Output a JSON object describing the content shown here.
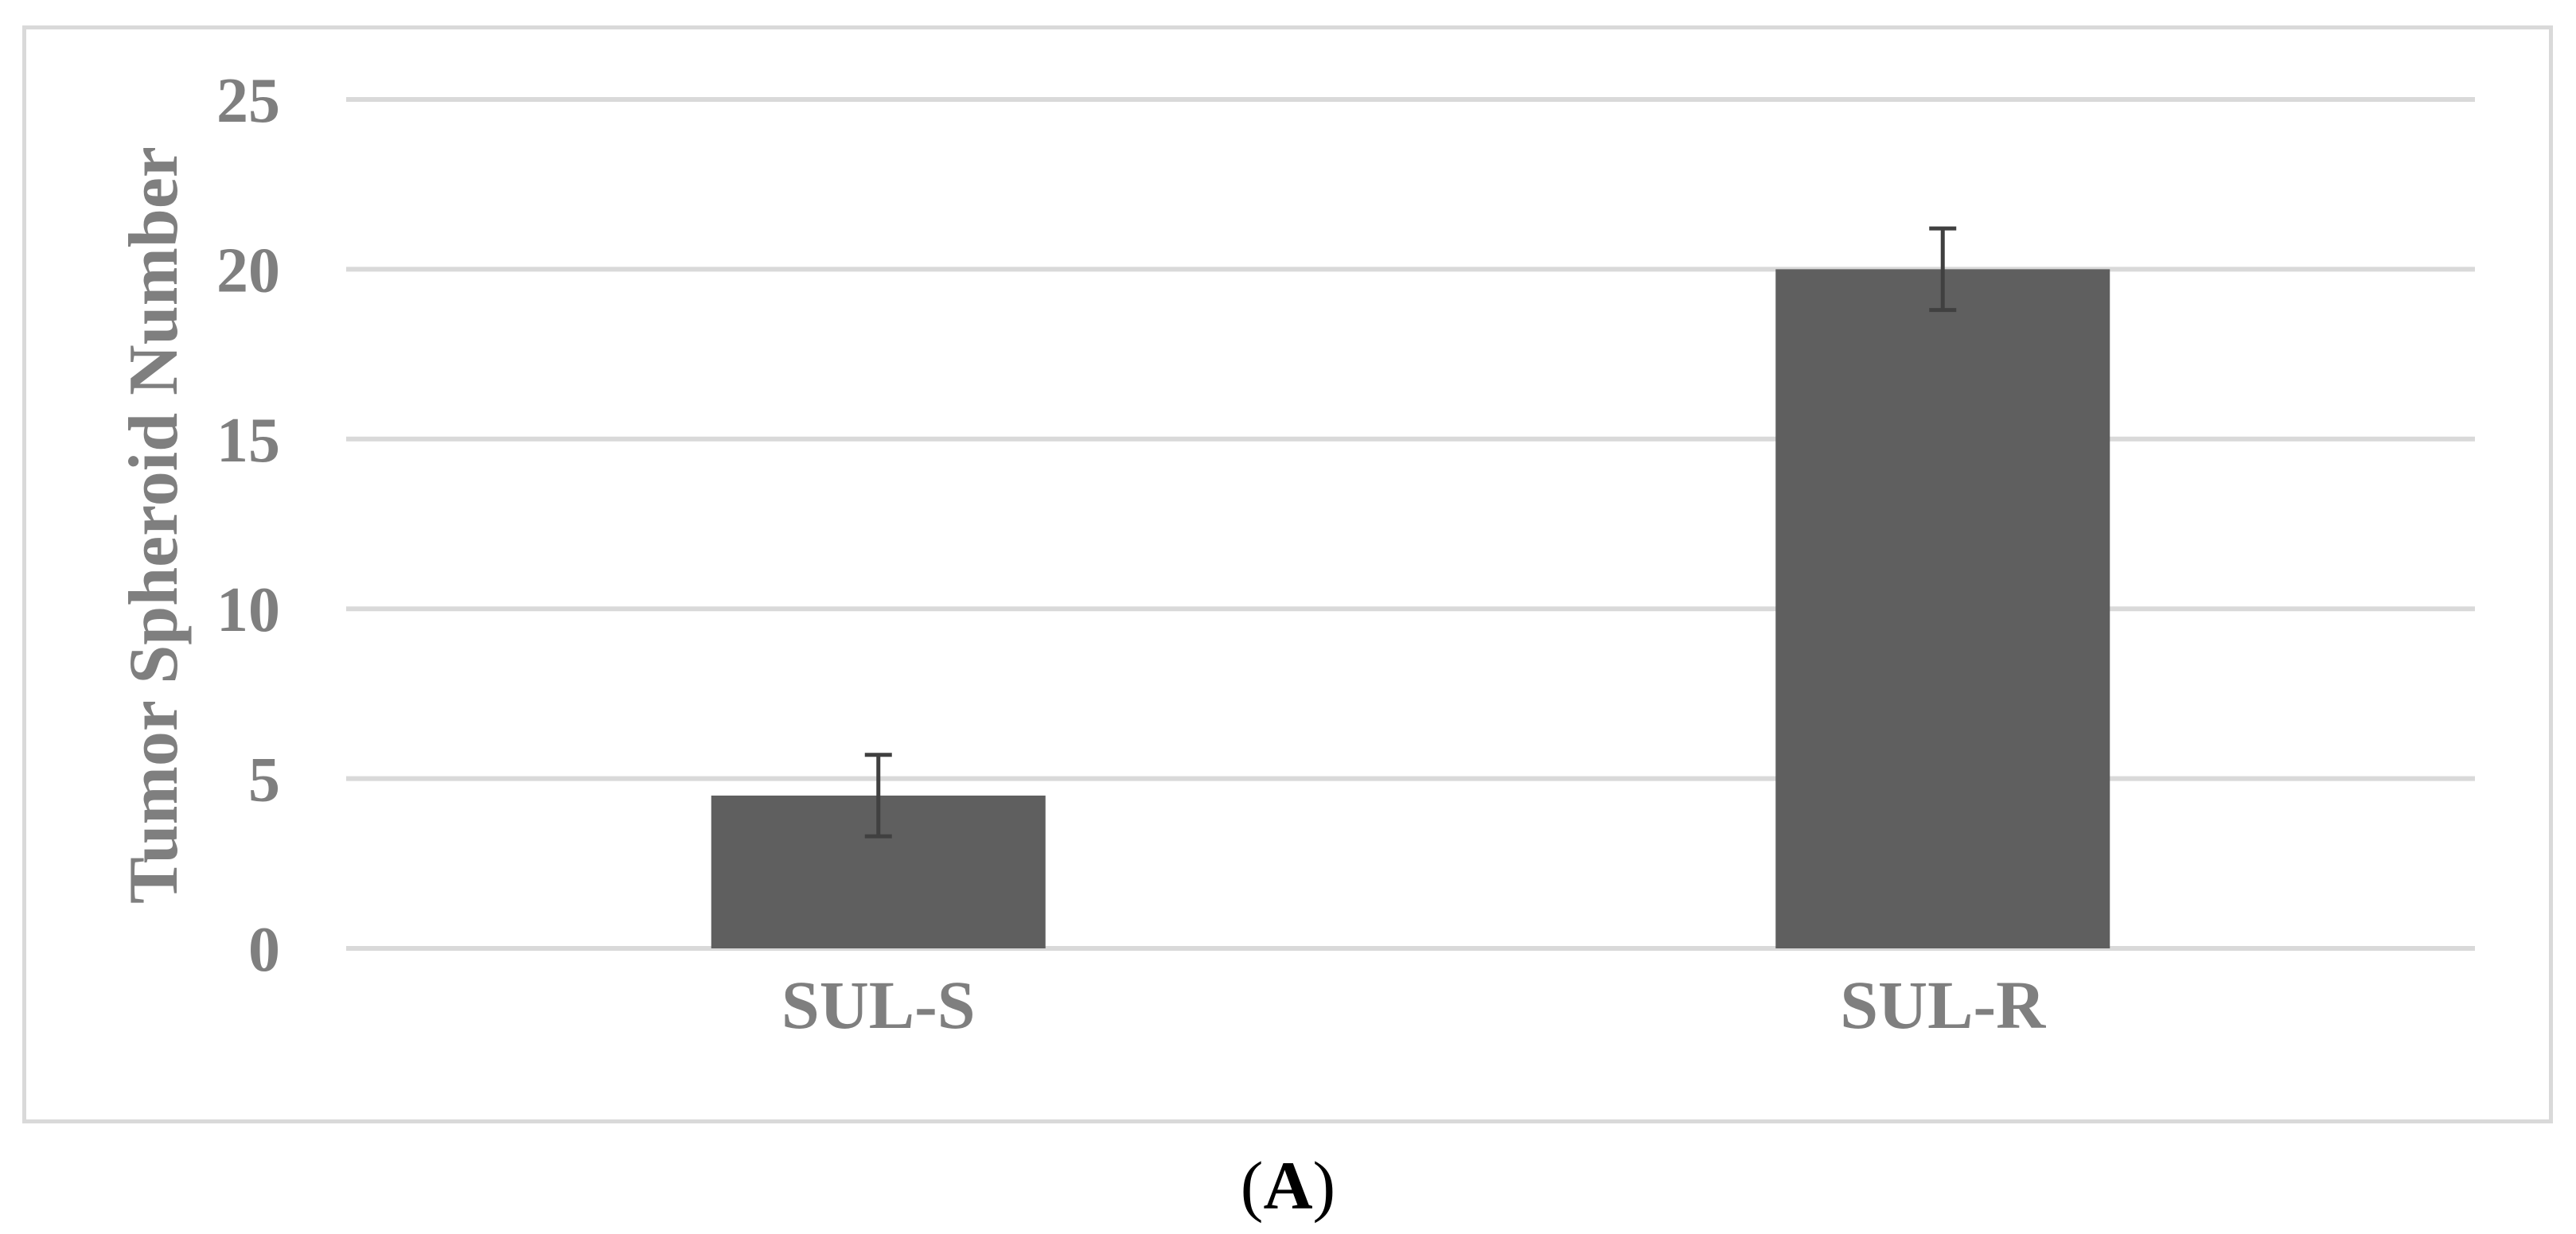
{
  "chart_data": {
    "type": "bar",
    "categories": [
      "SUL-S",
      "SUL-R"
    ],
    "values": [
      4.5,
      20
    ],
    "error": [
      1.2,
      1.2
    ],
    "ylabel": "Tumor Spheroid Number",
    "xlabel": "",
    "ylim": [
      0,
      25
    ],
    "yticks": [
      0,
      5,
      10,
      15,
      20,
      25
    ],
    "grid": true,
    "bar_color": "#5f5f5f",
    "grid_color": "#d9d9d9",
    "label_color": "#7f7f7f"
  },
  "panel_label": {
    "open": "(",
    "letter": "A",
    "close": ")"
  }
}
